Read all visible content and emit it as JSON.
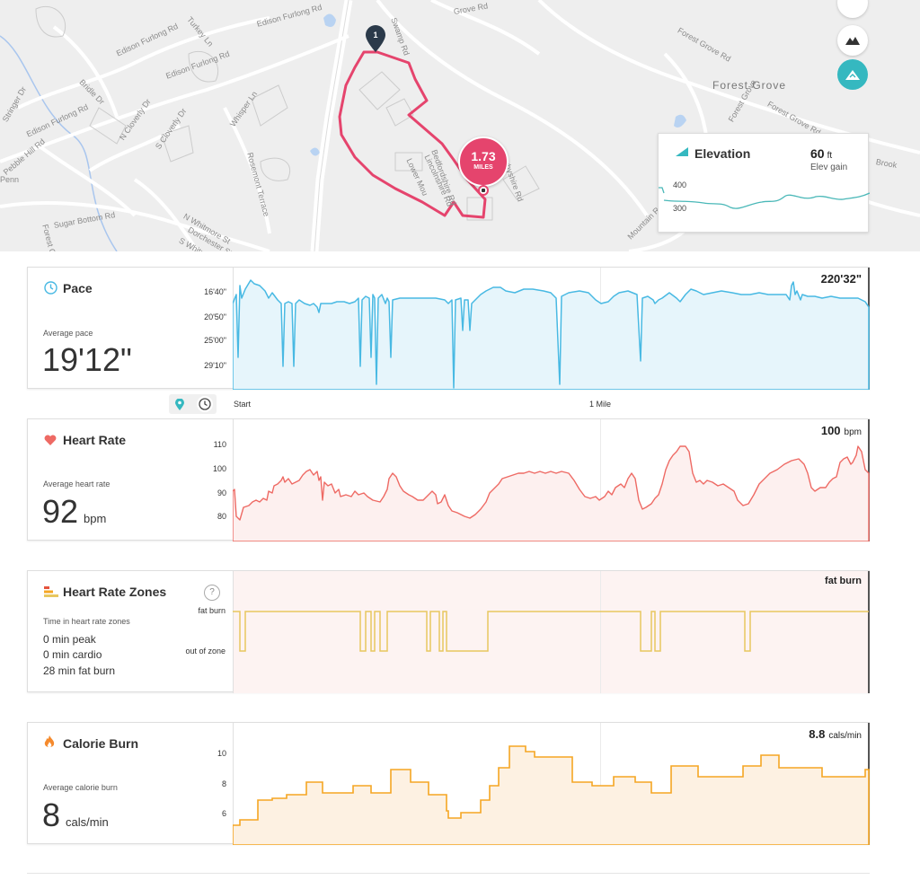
{
  "colors": {
    "route": "#e5446d",
    "pace": "#48b9e3",
    "heart_rate": "#ee6a64",
    "zones": "#e8c75f",
    "calorie": "#f5a623",
    "elevation": "#4ab8b8",
    "accent_teal": "#35b8c0"
  },
  "map": {
    "roads": [
      "Turkey Ln",
      "Edison Furlong Rd",
      "Edison Furlong Rd",
      "Edison Furlong Rd",
      "Bridle Dr",
      "Stringer Dr",
      "Edison Furlong Rd",
      "N Cloverly Dr",
      "S Cloverly Dr",
      "Whisper Ln",
      "Rosemont Terrace",
      "Pebble Hill Rd",
      "Sugar Bottom Rd",
      "N Whitmore St",
      "Dorchester St",
      "S Whitmore",
      "Swamp Rd",
      "Grove Rd",
      "Forest Grove Rd",
      "Forest Grove Rd",
      "Forest Grove",
      "Mountain Rd",
      "Lower Mou",
      "Lincolnshire Rd",
      "Derbyshire Rd",
      "Bedfordshire Rd",
      "Brook",
      "Forest Grove Rd",
      "Penn",
      "Od"
    ],
    "place": "Forest Grove",
    "start_marker": "1",
    "distance_badge": {
      "value": "1.73",
      "unit": "MILES"
    }
  },
  "elevation_card": {
    "title": "Elevation",
    "gain_value": "60",
    "gain_unit": "ft",
    "gain_label": "Elev gain",
    "ticks": [
      "400",
      "300"
    ]
  },
  "axis": {
    "start": "Start",
    "mile": "1 Mile"
  },
  "pace": {
    "title": "Pace",
    "avg_label": "Average pace",
    "avg_value": "19'12\"",
    "summary": "220'32\"",
    "ticks": [
      "16'40\"",
      "20'50\"",
      "25'00\"",
      "29'10\""
    ]
  },
  "heart_rate": {
    "title": "Heart Rate",
    "avg_label": "Average heart rate",
    "avg_value": "92",
    "avg_unit": "bpm",
    "summary_value": "100",
    "summary_unit": "bpm",
    "ticks": [
      "110",
      "100",
      "90",
      "80"
    ]
  },
  "zones": {
    "title": "Heart Rate Zones",
    "help": "?",
    "label": "Time in heart rate zones",
    "peak": "0 min peak",
    "cardio": "0 min cardio",
    "fat_burn": "28 min fat burn",
    "summary": "fat burn",
    "ticks": [
      "fat burn",
      "out of zone"
    ]
  },
  "calorie": {
    "title": "Calorie Burn",
    "avg_label": "Average calorie burn",
    "avg_value": "8",
    "avg_unit": "cals/min",
    "summary_value": "8.8",
    "summary_unit": "cals/min",
    "ticks": [
      "10",
      "8",
      "6"
    ]
  }
}
